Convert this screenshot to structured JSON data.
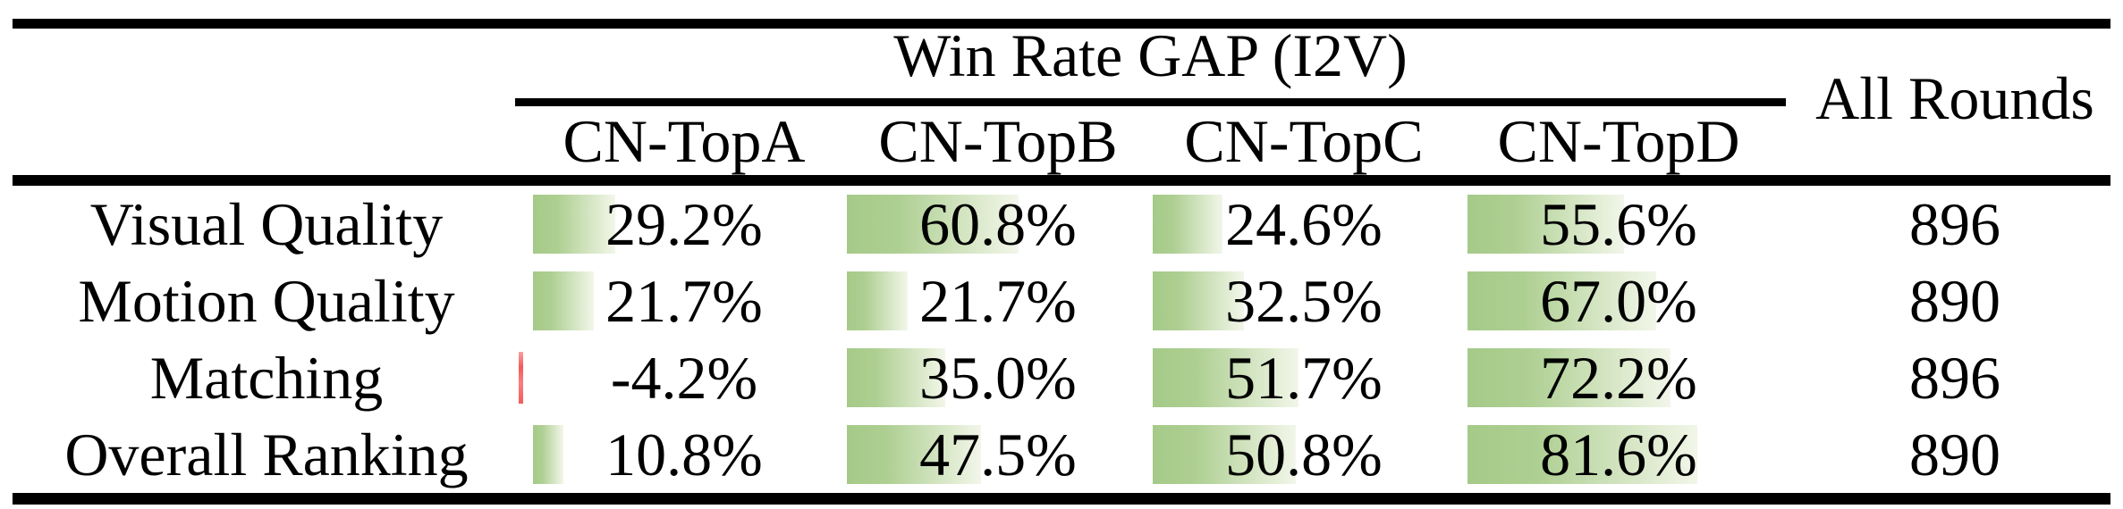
{
  "table": {
    "title": "Win Rate GAP (I2V)",
    "all_rounds_label": "All Rounds",
    "columns": [
      "CN-TopA",
      "CN-TopB",
      "CN-TopC",
      "CN-TopD"
    ],
    "rows": [
      {
        "label": "Visual Quality",
        "cells": [
          {
            "display": "29.2%",
            "pct": 29.2
          },
          {
            "display": "60.8%",
            "pct": 60.8
          },
          {
            "display": "24.6%",
            "pct": 24.6
          },
          {
            "display": "55.6%",
            "pct": 55.6
          }
        ],
        "all_rounds": "896"
      },
      {
        "label": "Motion Quality",
        "cells": [
          {
            "display": "21.7%",
            "pct": 21.7
          },
          {
            "display": "21.7%",
            "pct": 21.7
          },
          {
            "display": "32.5%",
            "pct": 32.5
          },
          {
            "display": "67.0%",
            "pct": 67.0
          }
        ],
        "all_rounds": "890"
      },
      {
        "label": "Matching",
        "cells": [
          {
            "display": "-4.2%",
            "pct": -4.2
          },
          {
            "display": "35.0%",
            "pct": 35.0
          },
          {
            "display": "51.7%",
            "pct": 51.7
          },
          {
            "display": "72.2%",
            "pct": 72.2
          }
        ],
        "all_rounds": "896"
      },
      {
        "label": "Overall Ranking",
        "cells": [
          {
            "display": "10.8%",
            "pct": 10.8
          },
          {
            "display": "47.5%",
            "pct": 47.5
          },
          {
            "display": "50.8%",
            "pct": 50.8
          },
          {
            "display": "81.6%",
            "pct": 81.6
          }
        ],
        "all_rounds": "890"
      }
    ],
    "colors": {
      "bar_positive_start": "#a5ca88",
      "bar_positive_end": "#f2f6ea",
      "bar_negative": "#f25b5b",
      "text": "#000000",
      "rule": "#000000"
    }
  },
  "chart_data": {
    "type": "table",
    "title": "Win Rate GAP (I2V)",
    "columns": [
      "CN-TopA",
      "CN-TopB",
      "CN-TopC",
      "CN-TopD",
      "All Rounds"
    ],
    "row_labels": [
      "Visual Quality",
      "Motion Quality",
      "Matching",
      "Overall Ranking"
    ],
    "series": [
      {
        "name": "CN-TopA",
        "values": [
          29.2,
          21.7,
          -4.2,
          10.8
        ]
      },
      {
        "name": "CN-TopB",
        "values": [
          60.8,
          21.7,
          35.0,
          47.5
        ]
      },
      {
        "name": "CN-TopC",
        "values": [
          24.6,
          32.5,
          51.7,
          50.8
        ]
      },
      {
        "name": "CN-TopD",
        "values": [
          55.6,
          67.0,
          72.2,
          81.6
        ]
      }
    ],
    "all_rounds": [
      896,
      890,
      896,
      890
    ],
    "value_unit": "%",
    "bar_scale_range": [
      0,
      100
    ],
    "notes": "In-cell gradient data bars; positive gaps green, negative gaps red"
  }
}
